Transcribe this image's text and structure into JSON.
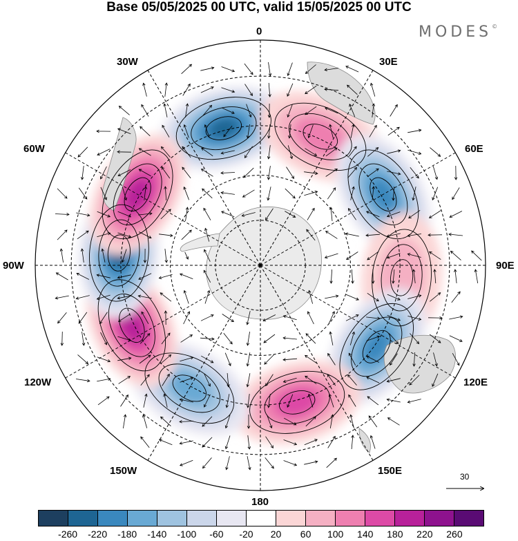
{
  "title": "Base 05/05/2025 00 UTC, valid 15/05/2025 00 UTC",
  "brand": "MODES",
  "brand_mark": "©",
  "longitude_labels": {
    "lon_0": "0",
    "lon_30e": "30E",
    "lon_60e": "60E",
    "lon_90e": "90E",
    "lon_120e": "120E",
    "lon_150e": "150E",
    "lon_180": "180",
    "lon_150w": "150W",
    "lon_120w": "120W",
    "lon_90w": "90W",
    "lon_60w": "60W",
    "lon_30w": "30W"
  },
  "reference_vector": {
    "value": "30"
  },
  "colorbar": {
    "colors": [
      "#1d3f5f",
      "#1e6593",
      "#3a88be",
      "#69a9d4",
      "#9fc3e0",
      "#cbd6ea",
      "#e8e7f2",
      "#ffffff",
      "#fbd6d6",
      "#f5b0c3",
      "#ee7fb0",
      "#dd4aa6",
      "#b8219a",
      "#8e128e",
      "#5a0b74"
    ],
    "tick_labels": [
      "-260",
      "-220",
      "-180",
      "-140",
      "-100",
      "-60",
      "-20",
      "20",
      "60",
      "100",
      "140",
      "180",
      "220",
      "260"
    ]
  },
  "anomaly_centers": [
    {
      "sign": "negative",
      "lon": "15W",
      "level": "-220"
    },
    {
      "sign": "positive",
      "lon": "25E",
      "level": "140"
    },
    {
      "sign": "negative",
      "lon": "60E",
      "level": "-180"
    },
    {
      "sign": "positive",
      "lon": "95E",
      "level": "100"
    },
    {
      "sign": "negative",
      "lon": "125E",
      "level": "-180"
    },
    {
      "sign": "positive",
      "lon": "165E",
      "level": "180"
    },
    {
      "sign": "negative",
      "lon": "150W",
      "level": "-140"
    },
    {
      "sign": "positive",
      "lon": "115W",
      "level": "220"
    },
    {
      "sign": "negative",
      "lon": "85W",
      "level": "-220"
    },
    {
      "sign": "positive",
      "lon": "60W",
      "level": "220"
    }
  ]
}
